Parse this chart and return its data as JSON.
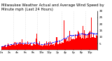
{
  "title": "Milwaukee Weather Actual and Average Wind Speed by Minute mph (Last 24 Hours)",
  "title_fontsize": 3.8,
  "n_points": 1440,
  "bar_color": "#ff0000",
  "line_color": "#0000ff",
  "background_color": "#ffffff",
  "plot_bg_color": "#ffffff",
  "ylim": [
    0,
    30
  ],
  "yticks": [
    5,
    10,
    15,
    20,
    25,
    30
  ],
  "ytick_fontsize": 3.0,
  "xtick_fontsize": 2.8,
  "grid_color": "#cccccc",
  "seed": 42,
  "n_gridlines": 7
}
